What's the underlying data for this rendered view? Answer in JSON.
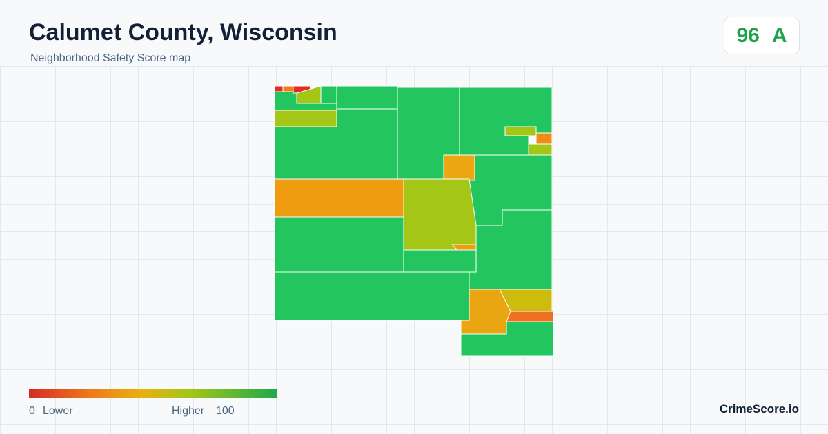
{
  "header": {
    "title": "Calumet County, Wisconsin",
    "subtitle": "Neighborhood Safety Score map"
  },
  "score": {
    "value": 96,
    "grade": "A"
  },
  "legend": {
    "min": 0,
    "min_label": "Lower",
    "max_label": "Higher",
    "max": 100
  },
  "brand": "CrimeScore.io"
}
